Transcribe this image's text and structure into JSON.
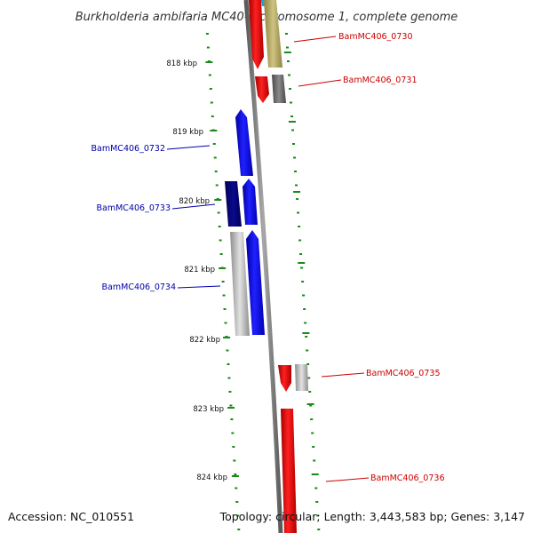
{
  "title": "Burkholderia ambifaria MC40-6 chromosome 1, complete genome",
  "accession_text": "Accession: NC_010551",
  "topology_text": "Topology: circular; Length: 3,443,583 bp; Genes: 3,147",
  "kbp_ticks": [
    {
      "label": "818 kbp"
    },
    {
      "label": "819 kbp"
    },
    {
      "label": "820 kbp"
    },
    {
      "label": "821 kbp"
    },
    {
      "label": "822 kbp"
    },
    {
      "label": "823 kbp"
    },
    {
      "label": "824 kbp"
    }
  ],
  "gene_labels": [
    {
      "name": "BamMC406_0730",
      "color": "#cc0000"
    },
    {
      "name": "BamMC406_0731",
      "color": "#cc0000"
    },
    {
      "name": "BamMC406_0732",
      "color": "#0000aa"
    },
    {
      "name": "BamMC406_0733",
      "color": "#0000aa"
    },
    {
      "name": "BamMC406_0734",
      "color": "#0000aa"
    },
    {
      "name": "BamMC406_0735",
      "color": "#cc0000"
    },
    {
      "name": "BamMC406_0736",
      "color": "#cc0000"
    }
  ],
  "colors": {
    "backbone": "#888888",
    "tick": "#1a8a1a",
    "forward_cds": "#ff0000",
    "reverse_cds": "#0000ff",
    "cds_dark_blue": "#000080",
    "cds_olive": "#b5a860",
    "cds_gray": "#777777",
    "cds_light_gray": "#b8b8b8",
    "cds_cyan": "#29b6f6"
  }
}
